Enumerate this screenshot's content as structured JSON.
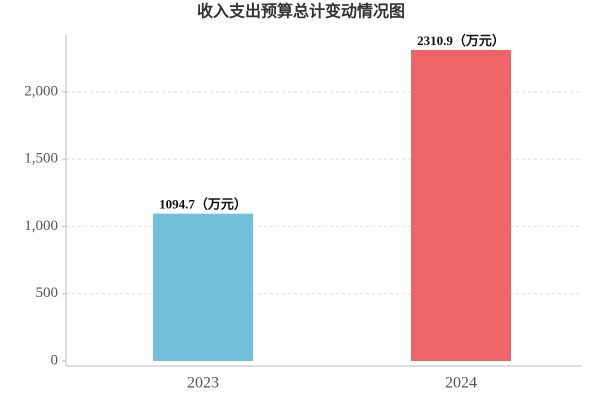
{
  "chart_data": {
    "type": "bar",
    "title": "收入支出预算总计变动情况图",
    "categories": [
      "2023",
      "2024"
    ],
    "values": [
      1094.7,
      2310.9
    ],
    "value_labels": [
      "1094.7（万元）",
      "2310.9（万元）"
    ],
    "colors": [
      "#72bfdb",
      "#ee6467"
    ],
    "ylim": [
      0,
      2400
    ],
    "yticks": [
      0,
      500,
      {
        "value": 1000,
        "label": "1,000"
      },
      {
        "value": 1500,
        "label": "1,500"
      },
      {
        "value": 2000,
        "label": "2,000"
      }
    ],
    "grid": true
  }
}
